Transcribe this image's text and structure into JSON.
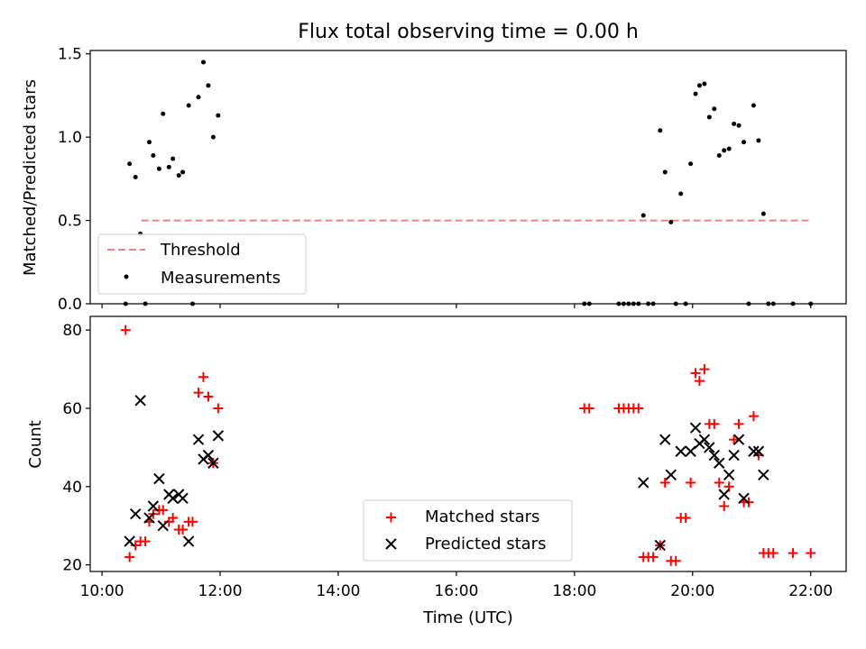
{
  "title": "Flux total observing time = 0.00 h",
  "chart_data": [
    {
      "type": "scatter",
      "ylabel": "Matched/Predicted stars",
      "xlim": [
        "09:48",
        "22:36"
      ],
      "ylim": [
        0,
        1.52
      ],
      "yticks": [
        "0.0",
        "0.5",
        "1.0",
        "1.5"
      ],
      "threshold": {
        "name": "Threshold",
        "value": 0.5,
        "x": [
          "10:40",
          "21:58"
        ],
        "color": "#f08080"
      },
      "measurements": {
        "name": "Measurements",
        "color": "#000000",
        "points": [
          [
            "10:24",
            0.0
          ],
          [
            "10:28",
            0.84
          ],
          [
            "10:34",
            0.76
          ],
          [
            "10:39",
            0.42
          ],
          [
            "10:44",
            0.0
          ],
          [
            "10:48",
            0.97
          ],
          [
            "10:52",
            0.89
          ],
          [
            "10:58",
            0.81
          ],
          [
            "11:02",
            1.14
          ],
          [
            "11:08",
            0.82
          ],
          [
            "11:12",
            0.87
          ],
          [
            "11:18",
            0.77
          ],
          [
            "11:22",
            0.79
          ],
          [
            "11:28",
            1.19
          ],
          [
            "11:32",
            0.0
          ],
          [
            "11:38",
            1.24
          ],
          [
            "11:43",
            1.45
          ],
          [
            "11:48",
            1.31
          ],
          [
            "11:53",
            1.0
          ],
          [
            "11:58",
            1.13
          ],
          [
            "18:10",
            0.0
          ],
          [
            "18:15",
            0.0
          ],
          [
            "18:45",
            0.0
          ],
          [
            "18:50",
            0.0
          ],
          [
            "18:55",
            0.0
          ],
          [
            "19:00",
            0.0
          ],
          [
            "19:05",
            0.0
          ],
          [
            "19:10",
            0.53
          ],
          [
            "19:15",
            0.0
          ],
          [
            "19:20",
            0.0
          ],
          [
            "19:27",
            1.04
          ],
          [
            "19:32",
            0.79
          ],
          [
            "19:38",
            0.49
          ],
          [
            "19:43",
            0.0
          ],
          [
            "19:48",
            0.66
          ],
          [
            "19:53",
            0.0
          ],
          [
            "19:58",
            0.84
          ],
          [
            "20:03",
            1.26
          ],
          [
            "20:07",
            1.31
          ],
          [
            "20:12",
            1.32
          ],
          [
            "20:17",
            1.12
          ],
          [
            "20:22",
            1.17
          ],
          [
            "20:27",
            0.89
          ],
          [
            "20:32",
            0.92
          ],
          [
            "20:37",
            0.93
          ],
          [
            "20:42",
            1.08
          ],
          [
            "20:47",
            1.07
          ],
          [
            "20:52",
            0.97
          ],
          [
            "20:57",
            0.0
          ],
          [
            "21:02",
            1.19
          ],
          [
            "21:07",
            0.98
          ],
          [
            "21:12",
            0.54
          ],
          [
            "21:17",
            0.0
          ],
          [
            "21:22",
            0.0
          ],
          [
            "21:42",
            0.0
          ],
          [
            "22:00",
            0.0
          ]
        ]
      },
      "legend_position": "lower-left"
    },
    {
      "type": "scatter",
      "xlabel": "Time (UTC)",
      "ylabel": "Count",
      "xlim": [
        "09:48",
        "22:36"
      ],
      "ylim": [
        18.3,
        83.5
      ],
      "xticks": [
        "10:00",
        "12:00",
        "14:00",
        "16:00",
        "18:00",
        "20:00",
        "22:00"
      ],
      "yticks": [
        "20",
        "40",
        "60",
        "80"
      ],
      "series": [
        {
          "name": "Matched stars",
          "marker": "plus",
          "color": "#ff0000",
          "points": [
            [
              "10:24",
              80
            ],
            [
              "10:28",
              22
            ],
            [
              "10:34",
              25
            ],
            [
              "10:39",
              26
            ],
            [
              "10:44",
              26
            ],
            [
              "10:48",
              31
            ],
            [
              "10:52",
              33
            ],
            [
              "10:58",
              34
            ],
            [
              "11:02",
              34
            ],
            [
              "11:08",
              31
            ],
            [
              "11:12",
              32
            ],
            [
              "11:18",
              29
            ],
            [
              "11:22",
              29
            ],
            [
              "11:28",
              31
            ],
            [
              "11:32",
              31
            ],
            [
              "11:38",
              64
            ],
            [
              "11:43",
              68
            ],
            [
              "11:48",
              63
            ],
            [
              "11:53",
              46
            ],
            [
              "11:58",
              60
            ],
            [
              "18:10",
              60
            ],
            [
              "18:15",
              60
            ],
            [
              "18:45",
              60
            ],
            [
              "18:50",
              60
            ],
            [
              "18:55",
              60
            ],
            [
              "19:00",
              60
            ],
            [
              "19:05",
              60
            ],
            [
              "19:10",
              22
            ],
            [
              "19:15",
              22
            ],
            [
              "19:20",
              22
            ],
            [
              "19:27",
              25
            ],
            [
              "19:32",
              41
            ],
            [
              "19:38",
              21
            ],
            [
              "19:43",
              21
            ],
            [
              "19:48",
              32
            ],
            [
              "19:53",
              32
            ],
            [
              "19:58",
              41
            ],
            [
              "20:03",
              69
            ],
            [
              "20:07",
              67
            ],
            [
              "20:12",
              70
            ],
            [
              "20:17",
              56
            ],
            [
              "20:22",
              56
            ],
            [
              "20:27",
              41
            ],
            [
              "20:32",
              35
            ],
            [
              "20:37",
              40
            ],
            [
              "20:42",
              52
            ],
            [
              "20:47",
              56
            ],
            [
              "20:52",
              36
            ],
            [
              "20:57",
              36
            ],
            [
              "21:02",
              58
            ],
            [
              "21:07",
              48
            ],
            [
              "21:12",
              23
            ],
            [
              "21:17",
              23
            ],
            [
              "21:22",
              23
            ],
            [
              "21:42",
              23
            ],
            [
              "22:00",
              23
            ]
          ]
        },
        {
          "name": "Predicted stars",
          "marker": "x",
          "color": "#000000",
          "points": [
            [
              "10:28",
              26
            ],
            [
              "10:34",
              33
            ],
            [
              "10:39",
              62
            ],
            [
              "10:48",
              32
            ],
            [
              "10:52",
              35
            ],
            [
              "10:58",
              42
            ],
            [
              "11:02",
              30
            ],
            [
              "11:08",
              38
            ],
            [
              "11:12",
              37
            ],
            [
              "11:18",
              38
            ],
            [
              "11:22",
              37
            ],
            [
              "11:28",
              26
            ],
            [
              "11:38",
              52
            ],
            [
              "11:43",
              47
            ],
            [
              "11:48",
              48
            ],
            [
              "11:53",
              46
            ],
            [
              "11:58",
              53
            ],
            [
              "19:10",
              41
            ],
            [
              "19:27",
              25
            ],
            [
              "19:32",
              52
            ],
            [
              "19:38",
              43
            ],
            [
              "19:48",
              49
            ],
            [
              "19:58",
              49
            ],
            [
              "20:03",
              55
            ],
            [
              "20:07",
              51
            ],
            [
              "20:12",
              52
            ],
            [
              "20:17",
              50
            ],
            [
              "20:22",
              48
            ],
            [
              "20:27",
              46
            ],
            [
              "20:32",
              38
            ],
            [
              "20:37",
              43
            ],
            [
              "20:42",
              48
            ],
            [
              "20:47",
              52
            ],
            [
              "20:52",
              37
            ],
            [
              "21:02",
              49
            ],
            [
              "21:07",
              49
            ],
            [
              "21:12",
              43
            ]
          ]
        }
      ],
      "legend_position": "lower-center"
    }
  ]
}
